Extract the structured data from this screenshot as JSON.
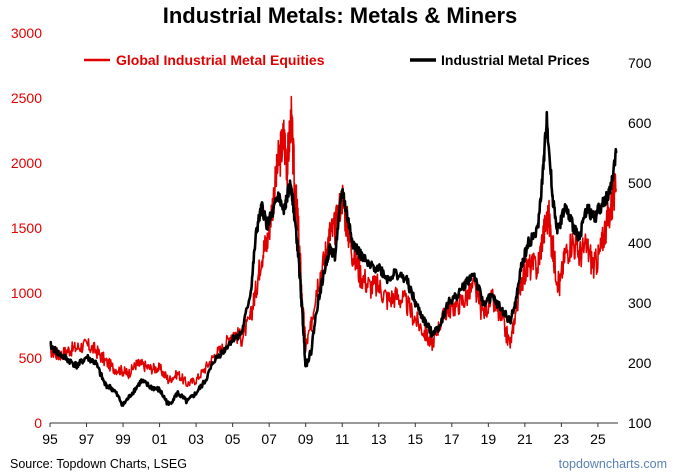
{
  "chart_data": {
    "type": "line",
    "title": "Industrial Metals: Metals & Miners",
    "x_tick_labels": [
      "95",
      "97",
      "99",
      "01",
      "03",
      "05",
      "07",
      "09",
      "11",
      "13",
      "15",
      "17",
      "19",
      "21",
      "23",
      "25"
    ],
    "x_range": [
      1995,
      2026.1
    ],
    "y_left": {
      "range": [
        0,
        3000
      ],
      "ticks": [
        0,
        500,
        1000,
        1500,
        2000,
        2500,
        3000
      ],
      "color": "#e10000"
    },
    "y_right": {
      "range": [
        100,
        750
      ],
      "ticks": [
        100,
        200,
        300,
        400,
        500,
        600,
        700
      ],
      "color": "#000000"
    },
    "series": [
      {
        "name": "Global Industrial Metal Equities",
        "axis": "left",
        "color": "#e10000",
        "points": [
          [
            1995.0,
            560
          ],
          [
            1995.5,
            520
          ],
          [
            1996.0,
            560
          ],
          [
            1996.5,
            580
          ],
          [
            1997.0,
            600
          ],
          [
            1997.5,
            560
          ],
          [
            1998.0,
            480
          ],
          [
            1998.5,
            420
          ],
          [
            1999.0,
            400
          ],
          [
            1999.3,
            380
          ],
          [
            1999.7,
            450
          ],
          [
            2000.0,
            450
          ],
          [
            2000.5,
            420
          ],
          [
            2001.0,
            420
          ],
          [
            2001.5,
            330
          ],
          [
            2002.0,
            380
          ],
          [
            2002.5,
            300
          ],
          [
            2003.0,
            330
          ],
          [
            2003.5,
            420
          ],
          [
            2004.0,
            520
          ],
          [
            2004.5,
            580
          ],
          [
            2005.0,
            700
          ],
          [
            2005.5,
            650
          ],
          [
            2006.0,
            820
          ],
          [
            2006.3,
            1050
          ],
          [
            2006.6,
            1300
          ],
          [
            2006.9,
            1400
          ],
          [
            2007.2,
            1700
          ],
          [
            2007.5,
            2000
          ],
          [
            2007.8,
            2200
          ],
          [
            2008.0,
            2000
          ],
          [
            2008.2,
            2350
          ],
          [
            2008.4,
            1800
          ],
          [
            2008.6,
            1500
          ],
          [
            2008.8,
            950
          ],
          [
            2009.0,
            580
          ],
          [
            2009.3,
            750
          ],
          [
            2009.6,
            1050
          ],
          [
            2010.0,
            1250
          ],
          [
            2010.3,
            1450
          ],
          [
            2010.6,
            1500
          ],
          [
            2011.0,
            1750
          ],
          [
            2011.3,
            1500
          ],
          [
            2011.6,
            1300
          ],
          [
            2012.0,
            1150
          ],
          [
            2012.5,
            1050
          ],
          [
            2013.0,
            1050
          ],
          [
            2013.5,
            950
          ],
          [
            2014.0,
            980
          ],
          [
            2014.5,
            920
          ],
          [
            2015.0,
            800
          ],
          [
            2015.5,
            700
          ],
          [
            2015.9,
            600
          ],
          [
            2016.3,
            750
          ],
          [
            2016.8,
            880
          ],
          [
            2017.2,
            900
          ],
          [
            2017.7,
            950
          ],
          [
            2018.2,
            1050
          ],
          [
            2018.7,
            850
          ],
          [
            2019.2,
            950
          ],
          [
            2019.7,
            800
          ],
          [
            2020.2,
            600
          ],
          [
            2020.5,
            850
          ],
          [
            2020.8,
            1100
          ],
          [
            2021.2,
            1200
          ],
          [
            2021.7,
            1200
          ],
          [
            2022.0,
            1450
          ],
          [
            2022.3,
            1600
          ],
          [
            2022.6,
            1250
          ],
          [
            2022.9,
            1050
          ],
          [
            2023.2,
            1300
          ],
          [
            2023.6,
            1400
          ],
          [
            2024.0,
            1300
          ],
          [
            2024.4,
            1350
          ],
          [
            2024.8,
            1200
          ],
          [
            2025.1,
            1300
          ],
          [
            2025.4,
            1500
          ],
          [
            2025.7,
            1650
          ],
          [
            2026.0,
            1800
          ]
        ]
      },
      {
        "name": "Industrial Metal Prices",
        "axis": "right",
        "color": "#000000",
        "points": [
          [
            1995.0,
            230
          ],
          [
            1995.5,
            215
          ],
          [
            1996.0,
            205
          ],
          [
            1996.5,
            195
          ],
          [
            1997.0,
            210
          ],
          [
            1997.5,
            200
          ],
          [
            1998.0,
            165
          ],
          [
            1998.5,
            155
          ],
          [
            1999.0,
            130
          ],
          [
            1999.5,
            150
          ],
          [
            2000.0,
            170
          ],
          [
            2000.5,
            160
          ],
          [
            2001.0,
            155
          ],
          [
            2001.5,
            130
          ],
          [
            2002.0,
            150
          ],
          [
            2002.5,
            135
          ],
          [
            2003.0,
            150
          ],
          [
            2003.5,
            170
          ],
          [
            2004.0,
            205
          ],
          [
            2004.5,
            220
          ],
          [
            2005.0,
            240
          ],
          [
            2005.5,
            250
          ],
          [
            2006.0,
            320
          ],
          [
            2006.3,
            420
          ],
          [
            2006.6,
            460
          ],
          [
            2006.9,
            430
          ],
          [
            2007.2,
            450
          ],
          [
            2007.5,
            480
          ],
          [
            2007.8,
            450
          ],
          [
            2008.0,
            480
          ],
          [
            2008.2,
            500
          ],
          [
            2008.4,
            440
          ],
          [
            2008.6,
            380
          ],
          [
            2008.8,
            290
          ],
          [
            2009.0,
            195
          ],
          [
            2009.3,
            220
          ],
          [
            2009.6,
            290
          ],
          [
            2010.0,
            350
          ],
          [
            2010.3,
            390
          ],
          [
            2010.6,
            380
          ],
          [
            2011.0,
            490
          ],
          [
            2011.3,
            440
          ],
          [
            2011.6,
            400
          ],
          [
            2012.0,
            380
          ],
          [
            2012.5,
            360
          ],
          [
            2013.0,
            360
          ],
          [
            2013.5,
            340
          ],
          [
            2013.9,
            350
          ],
          [
            2014.5,
            340
          ],
          [
            2015.0,
            300
          ],
          [
            2015.5,
            270
          ],
          [
            2015.9,
            250
          ],
          [
            2016.3,
            260
          ],
          [
            2016.8,
            300
          ],
          [
            2017.2,
            310
          ],
          [
            2017.7,
            330
          ],
          [
            2018.2,
            350
          ],
          [
            2018.7,
            300
          ],
          [
            2019.2,
            310
          ],
          [
            2019.7,
            290
          ],
          [
            2020.2,
            270
          ],
          [
            2020.5,
            300
          ],
          [
            2020.8,
            360
          ],
          [
            2021.2,
            400
          ],
          [
            2021.7,
            420
          ],
          [
            2022.0,
            520
          ],
          [
            2022.2,
            610
          ],
          [
            2022.5,
            480
          ],
          [
            2022.8,
            420
          ],
          [
            2023.2,
            460
          ],
          [
            2023.6,
            430
          ],
          [
            2024.0,
            410
          ],
          [
            2024.4,
            460
          ],
          [
            2024.8,
            440
          ],
          [
            2025.1,
            460
          ],
          [
            2025.4,
            470
          ],
          [
            2025.7,
            490
          ],
          [
            2026.0,
            550
          ]
        ]
      }
    ],
    "legend": {
      "placement": "top"
    }
  },
  "footer": {
    "source": "Source: Topdown Charts, LSEG",
    "watermark": "topdowncharts.com"
  }
}
